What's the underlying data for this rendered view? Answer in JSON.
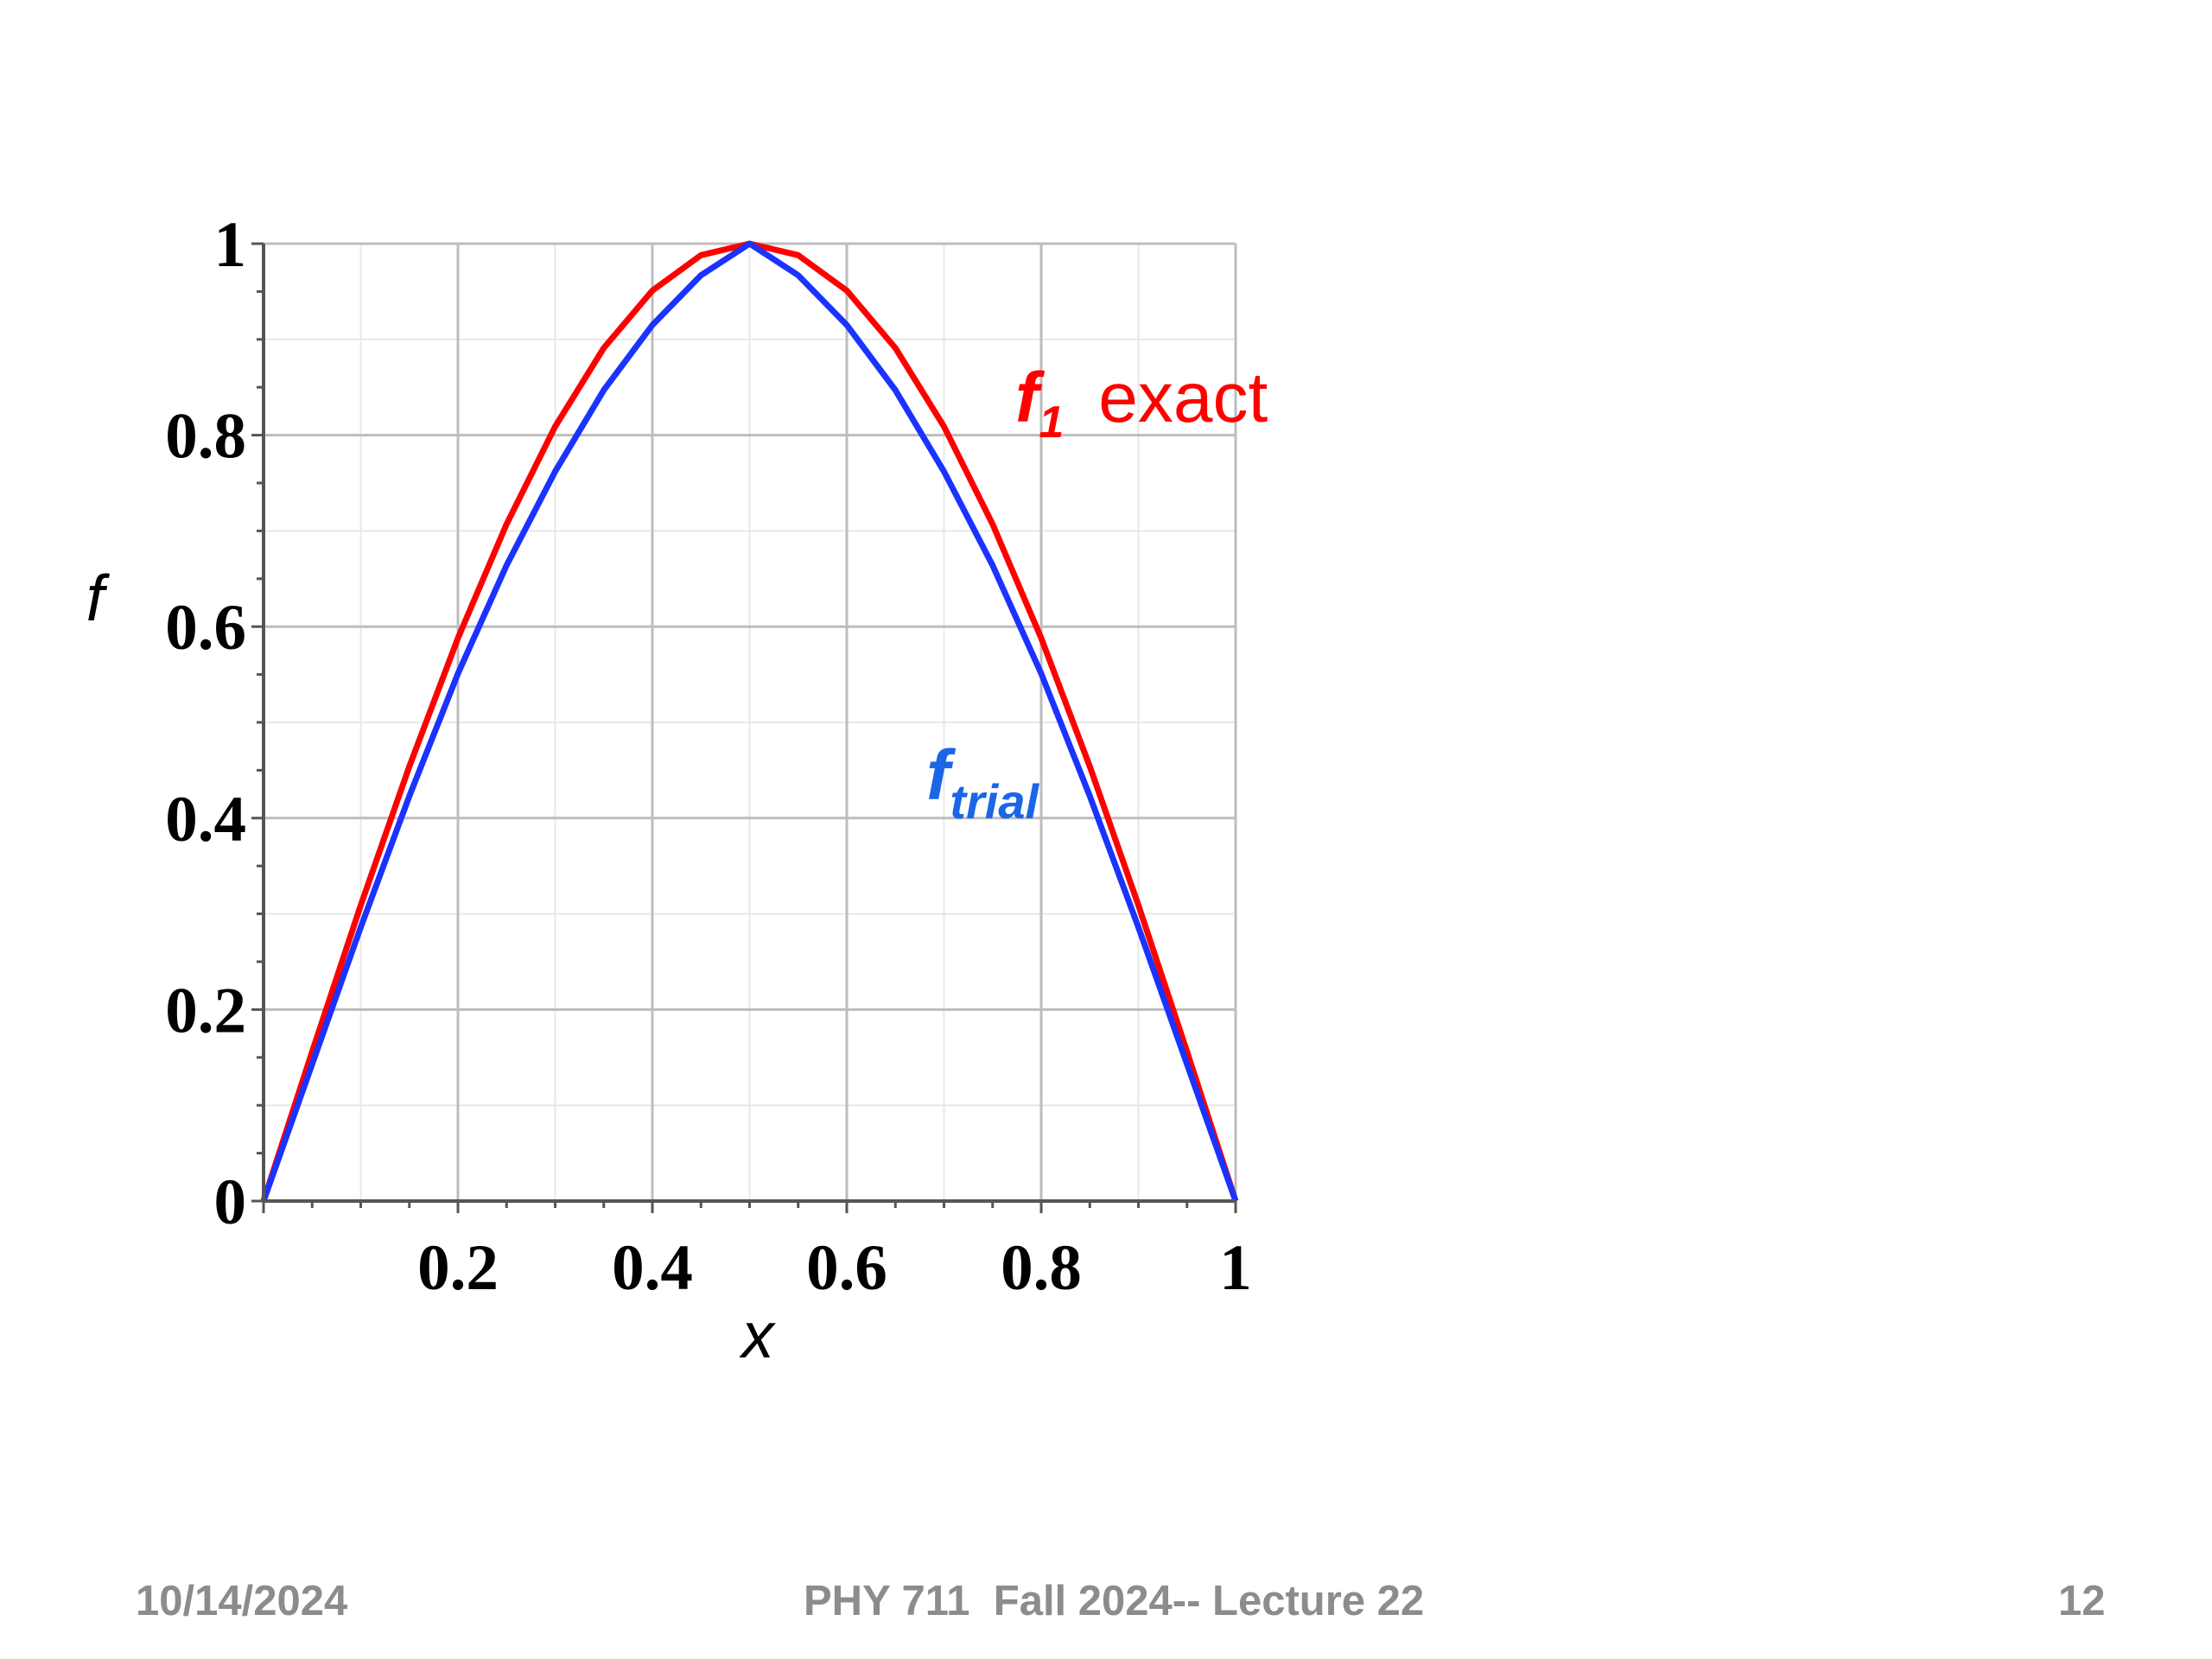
{
  "chart_data": {
    "type": "line",
    "title": "",
    "xlabel": "x",
    "ylabel": "f",
    "xlim": [
      0,
      1
    ],
    "ylim": [
      0,
      1
    ],
    "x_ticks": [
      "0.2",
      "0.4",
      "0.6",
      "0.8",
      "1"
    ],
    "y_ticks": [
      "0",
      "0.2",
      "0.4",
      "0.6",
      "0.8",
      "1"
    ],
    "grid": true,
    "x": [
      0,
      0.05,
      0.1,
      0.15,
      0.2,
      0.25,
      0.3,
      0.35,
      0.4,
      0.45,
      0.5,
      0.55,
      0.6,
      0.65,
      0.7,
      0.75,
      0.8,
      0.85,
      0.9,
      0.95,
      1
    ],
    "series": [
      {
        "name": "f_1 exact",
        "color": "#ff0000",
        "values": [
          0,
          0.156,
          0.309,
          0.454,
          0.588,
          0.707,
          0.809,
          0.891,
          0.951,
          0.988,
          1,
          0.988,
          0.951,
          0.891,
          0.809,
          0.707,
          0.588,
          0.454,
          0.309,
          0.156,
          0
        ]
      },
      {
        "name": "f_trial",
        "color": "#1a33ff",
        "values": [
          0,
          0.143,
          0.286,
          0.423,
          0.551,
          0.664,
          0.762,
          0.847,
          0.915,
          0.967,
          1,
          0.967,
          0.915,
          0.847,
          0.762,
          0.664,
          0.551,
          0.423,
          0.286,
          0.143,
          0
        ]
      }
    ],
    "annotations": {
      "exact": {
        "symbol": "f",
        "subscript": "1",
        "text": "exact",
        "color": "#ff0000"
      },
      "trial": {
        "symbol": "f",
        "subscript": "trial",
        "color": "#1a66e6"
      }
    }
  },
  "footer": {
    "date": "10/14/2024",
    "course": "PHY 711  Fall 2024-- Lecture 22",
    "page": "12"
  }
}
